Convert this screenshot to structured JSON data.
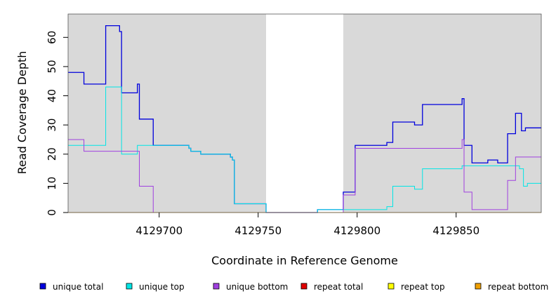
{
  "chart_data": {
    "type": "line",
    "xlabel": "Coordinate in Reference Genome",
    "ylabel": "Read Coverage Depth",
    "xlim": [
      4129654,
      4129893
    ],
    "ylim": [
      0,
      68
    ],
    "xticks": [
      4129700,
      4129750,
      4129800,
      4129850
    ],
    "yticks": [
      0,
      10,
      20,
      30,
      40,
      50,
      60
    ],
    "shaded_regions": [
      [
        4129654,
        4129754
      ],
      [
        4129793,
        4129893
      ]
    ],
    "legend_position": "bottom",
    "series": [
      {
        "name": "unique total",
        "color": "#0000dd",
        "points": [
          [
            4129654,
            48
          ],
          [
            4129662,
            48
          ],
          [
            4129662,
            44
          ],
          [
            4129673,
            44
          ],
          [
            4129673,
            64
          ],
          [
            4129680,
            64
          ],
          [
            4129680,
            62
          ],
          [
            4129681,
            62
          ],
          [
            4129681,
            41
          ],
          [
            4129689,
            41
          ],
          [
            4129689,
            44
          ],
          [
            4129690,
            44
          ],
          [
            4129690,
            32
          ],
          [
            4129697,
            32
          ],
          [
            4129697,
            23
          ],
          [
            4129715,
            23
          ],
          [
            4129715,
            22
          ],
          [
            4129716,
            22
          ],
          [
            4129716,
            21
          ],
          [
            4129721,
            21
          ],
          [
            4129721,
            20
          ],
          [
            4129736,
            20
          ],
          [
            4129736,
            19
          ],
          [
            4129737,
            19
          ],
          [
            4129737,
            18
          ],
          [
            4129738,
            18
          ],
          [
            4129738,
            3
          ],
          [
            4129754,
            3
          ],
          [
            4129754,
            0
          ],
          [
            4129780,
            0
          ],
          [
            4129780,
            1
          ],
          [
            4129793,
            1
          ],
          [
            4129793,
            7
          ],
          [
            4129799,
            7
          ],
          [
            4129799,
            23
          ],
          [
            4129815,
            23
          ],
          [
            4129815,
            24
          ],
          [
            4129818,
            24
          ],
          [
            4129818,
            31
          ],
          [
            4129829,
            31
          ],
          [
            4129829,
            30
          ],
          [
            4129833,
            30
          ],
          [
            4129833,
            37
          ],
          [
            4129853,
            37
          ],
          [
            4129853,
            39
          ],
          [
            4129854,
            39
          ],
          [
            4129854,
            23
          ],
          [
            4129858,
            23
          ],
          [
            4129858,
            17
          ],
          [
            4129866,
            17
          ],
          [
            4129866,
            18
          ],
          [
            4129871,
            18
          ],
          [
            4129871,
            17
          ],
          [
            4129876,
            17
          ],
          [
            4129876,
            27
          ],
          [
            4129880,
            27
          ],
          [
            4129880,
            34
          ],
          [
            4129883,
            34
          ],
          [
            4129883,
            28
          ],
          [
            4129885,
            28
          ],
          [
            4129885,
            29
          ],
          [
            4129893,
            29
          ]
        ]
      },
      {
        "name": "unique top",
        "color": "#00e5e5",
        "points": [
          [
            4129654,
            23
          ],
          [
            4129673,
            23
          ],
          [
            4129673,
            43
          ],
          [
            4129681,
            43
          ],
          [
            4129681,
            20
          ],
          [
            4129689,
            20
          ],
          [
            4129689,
            23
          ],
          [
            4129715,
            23
          ],
          [
            4129715,
            22
          ],
          [
            4129716,
            22
          ],
          [
            4129716,
            21
          ],
          [
            4129721,
            21
          ],
          [
            4129721,
            20
          ],
          [
            4129736,
            20
          ],
          [
            4129736,
            19
          ],
          [
            4129737,
            19
          ],
          [
            4129737,
            18
          ],
          [
            4129738,
            18
          ],
          [
            4129738,
            3
          ],
          [
            4129754,
            3
          ],
          [
            4129754,
            0
          ],
          [
            4129780,
            0
          ],
          [
            4129780,
            1
          ],
          [
            4129815,
            1
          ],
          [
            4129815,
            2
          ],
          [
            4129818,
            2
          ],
          [
            4129818,
            9
          ],
          [
            4129829,
            9
          ],
          [
            4129829,
            8
          ],
          [
            4129833,
            8
          ],
          [
            4129833,
            15
          ],
          [
            4129853,
            15
          ],
          [
            4129853,
            16
          ],
          [
            4129876,
            16
          ],
          [
            4129876,
            16
          ],
          [
            4129882,
            16
          ],
          [
            4129882,
            15
          ],
          [
            4129884,
            15
          ],
          [
            4129884,
            9
          ],
          [
            4129886,
            9
          ],
          [
            4129886,
            10
          ],
          [
            4129893,
            10
          ]
        ]
      },
      {
        "name": "unique bottom",
        "color": "#a040e0",
        "points": [
          [
            4129654,
            25
          ],
          [
            4129662,
            25
          ],
          [
            4129662,
            21
          ],
          [
            4129690,
            21
          ],
          [
            4129690,
            9
          ],
          [
            4129697,
            9
          ],
          [
            4129697,
            0
          ],
          [
            4129793,
            0
          ],
          [
            4129793,
            6
          ],
          [
            4129799,
            6
          ],
          [
            4129799,
            22
          ],
          [
            4129853,
            22
          ],
          [
            4129853,
            25
          ],
          [
            4129854,
            25
          ],
          [
            4129854,
            7
          ],
          [
            4129858,
            7
          ],
          [
            4129858,
            1
          ],
          [
            4129876,
            1
          ],
          [
            4129876,
            11
          ],
          [
            4129880,
            11
          ],
          [
            4129880,
            19
          ],
          [
            4129893,
            19
          ]
        ]
      },
      {
        "name": "repeat total",
        "color": "#e00000",
        "points": [
          [
            4129654,
            0
          ],
          [
            4129893,
            0
          ]
        ]
      },
      {
        "name": "repeat top",
        "color": "#ffff00",
        "points": [
          [
            4129654,
            0
          ],
          [
            4129893,
            0
          ]
        ]
      },
      {
        "name": "repeat bottom",
        "color": "#f0a000",
        "points": [
          [
            4129654,
            0
          ],
          [
            4129893,
            0
          ]
        ]
      }
    ]
  }
}
